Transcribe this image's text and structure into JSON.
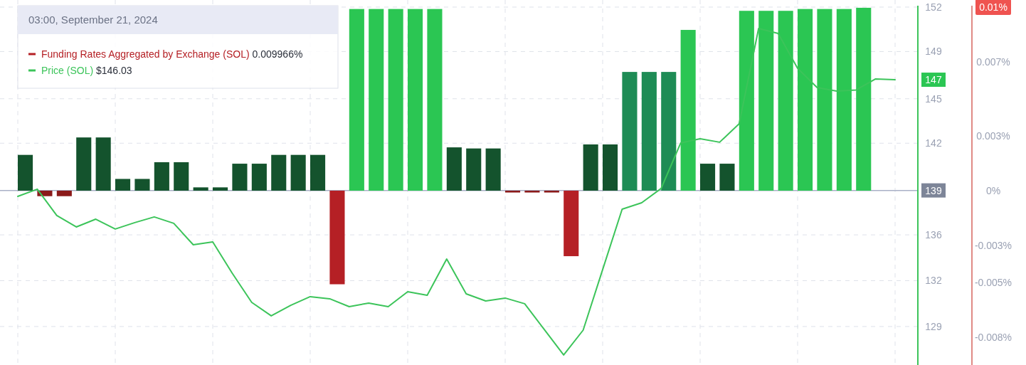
{
  "chart_data": {
    "type": "bar",
    "title": "03:00, September 21, 2024",
    "categories": [
      null,
      null,
      null,
      null,
      null,
      null,
      null,
      null,
      null,
      null,
      null,
      null,
      null,
      null,
      null,
      null,
      null,
      null,
      null,
      null,
      null,
      null,
      null,
      null,
      null,
      null,
      null,
      null,
      null,
      null,
      null,
      null,
      null,
      null,
      null,
      null,
      null,
      null,
      null,
      null,
      null,
      null,
      null,
      null,
      null,
      null
    ],
    "series": [
      {
        "name": "Funding Rates Aggregated by Exchange (SOL)",
        "axis": "y2",
        "color": "#b52025",
        "values": [
          0.00195,
          -0.0003,
          -0.0003,
          0.0029,
          0.0029,
          0.00064,
          0.00064,
          0.00155,
          0.00155,
          0.00018,
          0.00018,
          0.00147,
          0.00147,
          0.00195,
          0.00195,
          0.00195,
          -0.0051,
          0.0099,
          0.0099,
          0.0099,
          0.0099,
          0.0099,
          0.00236,
          0.0023,
          0.0023,
          -0.0001,
          -0.0001,
          -0.0001,
          -0.00357,
          0.00252,
          0.00252,
          0.00647,
          0.00647,
          0.00647,
          0.00876,
          0.00147,
          0.00147,
          0.0098,
          0.0098,
          0.0098,
          0.0099,
          0.0099,
          0.0099,
          0.009966,
          null,
          null
        ],
        "colors": [
          "#14532d",
          "#8b1a1a",
          "#8b1a1a",
          "#14532d",
          "#14532d",
          "#14532d",
          "#14532d",
          "#14532d",
          "#14532d",
          "#14532d",
          "#14532d",
          "#14532d",
          "#14532d",
          "#14532d",
          "#14532d",
          "#14532d",
          "#b52025",
          "#2bc653",
          "#2bc653",
          "#2bc653",
          "#2bc653",
          "#2bc653",
          "#14532d",
          "#14532d",
          "#14532d",
          "#8b1a1a",
          "#8b1a1a",
          "#8b1a1a",
          "#b52025",
          "#14532d",
          "#14532d",
          "#1e8c55",
          "#1e8c55",
          "#1e8c55",
          "#2bc653",
          "#14532d",
          "#14532d",
          "#2bc653",
          "#2bc653",
          "#2bc653",
          "#2bc653",
          "#2bc653",
          "#2bc653",
          "#2bc653",
          null,
          null
        ]
      },
      {
        "name": "Price (SOL)",
        "type": "line",
        "color": "#3cc45a",
        "values": [
          138.37,
          138.89,
          136.99,
          136.17,
          136.73,
          136.02,
          136.48,
          136.89,
          136.43,
          134.89,
          135.09,
          132.84,
          130.74,
          129.77,
          130.53,
          131.15,
          131.0,
          130.43,
          130.69,
          130.43,
          131.51,
          131.25,
          133.86,
          131.35,
          130.84,
          131.05,
          130.64,
          128.8,
          126.95,
          128.74,
          133.1,
          137.45,
          137.91,
          138.94,
          142.21,
          142.52,
          142.27,
          143.6,
          150.46,
          150.1,
          147.59,
          146.21,
          145.95,
          146.03,
          146.83,
          146.77
        ]
      }
    ],
    "ylim": [
      126.23,
      152.51
    ],
    "yticks": [
      {
        "value": 152,
        "label": "152"
      },
      {
        "value": 148.8,
        "label": "149"
      },
      {
        "value": 145.4,
        "label": "145"
      },
      {
        "value": 142.2,
        "label": "142"
      },
      {
        "value": 135.6,
        "label": "136"
      },
      {
        "value": 132.3,
        "label": "132"
      },
      {
        "value": 129,
        "label": "129"
      }
    ],
    "y2lim": [
      -0.0095,
      0.01039
    ],
    "y2ticks": [
      {
        "value": 0.01,
        "label": "0.01%"
      },
      {
        "value": 0.007,
        "label": "0.007%"
      },
      {
        "value": 0.003,
        "label": "0.003%"
      },
      {
        "value": 0,
        "label": "0%"
      },
      {
        "value": -0.003,
        "label": "-0.003%"
      },
      {
        "value": -0.005,
        "label": "-0.005%"
      },
      {
        "value": -0.008,
        "label": "-0.008%"
      }
    ],
    "ref_lines": [
      {
        "axis": "y",
        "value": 138.8,
        "label": "139",
        "color": "#a9b0c6"
      }
    ],
    "annotations": [
      "0.009966%",
      "$146.03",
      "147"
    ],
    "grid": true,
    "legend": "top left"
  }
}
